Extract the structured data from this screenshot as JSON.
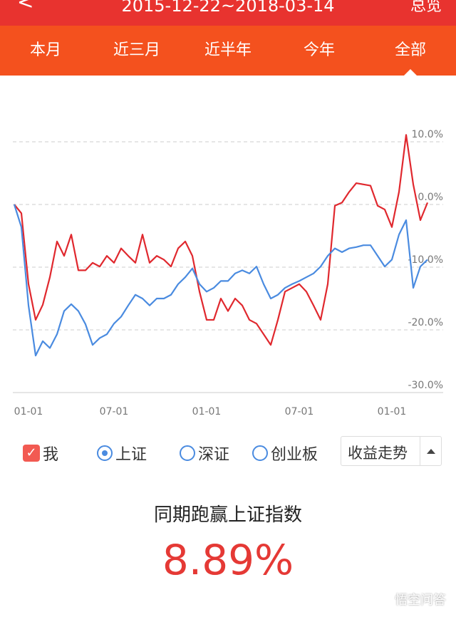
{
  "header": {
    "back": "<",
    "range": "2015-12-22~2018-03-14",
    "right": "总览"
  },
  "tabs": [
    "本月",
    "近三月",
    "近半年",
    "今年",
    "全部"
  ],
  "chart_data": {
    "type": "line",
    "categories": [
      null,
      null,
      "01-01",
      null,
      null,
      null,
      null,
      null,
      null,
      null,
      null,
      null,
      null,
      null,
      "07-01",
      null,
      null,
      null,
      null,
      null,
      null,
      null,
      null,
      null,
      null,
      null,
      null,
      "01-01",
      null,
      null,
      null,
      null,
      null,
      null,
      null,
      null,
      null,
      null,
      null,
      null,
      "07-01",
      null,
      null,
      null,
      null,
      null,
      null,
      null,
      null,
      null,
      null,
      null,
      null,
      "01-01",
      null,
      null,
      null,
      null,
      null
    ],
    "series": [
      {
        "name": "我",
        "color": "#e0282e",
        "values": [
          0,
          -1.4,
          -12.7,
          -18.4,
          -16,
          -11.6,
          -5.9,
          -8.2,
          -4.8,
          -10.5,
          -10.5,
          -9.3,
          -9.9,
          -8.2,
          -9.3,
          -7,
          -8.2,
          -9.3,
          -4.8,
          -9.3,
          -8.2,
          -8.8,
          -9.9,
          -7,
          -5.9,
          -8.2,
          -13.9,
          -18.4,
          -18.4,
          -15,
          -17,
          -15,
          -16.1,
          -18.4,
          -19,
          -20.7,
          -22.4,
          -18.4,
          -13.9,
          -13.3,
          -12.7,
          -13.9,
          -16.1,
          -18.4,
          -12.7,
          -0.2,
          0.3,
          2,
          3.4,
          3.2,
          3,
          -0.2,
          -0.8,
          -3.6,
          2,
          11.1,
          3.2,
          -2.5,
          0.3
        ]
      },
      {
        "name": "上证",
        "color": "#4a8be0",
        "values": [
          0,
          -3.6,
          -16.1,
          -24.1,
          -21.8,
          -22.9,
          -20.7,
          -17,
          -15.9,
          -17,
          -19.1,
          -22.4,
          -21.3,
          -20.7,
          -19,
          -17.9,
          -16.1,
          -14.4,
          -15,
          -16.1,
          -15,
          -15,
          -14.4,
          -12.7,
          -11.6,
          -10.2,
          -12.7,
          -13.9,
          -13.3,
          -12.2,
          -12.2,
          -11,
          -10.5,
          -11,
          -9.9,
          -12.7,
          -15,
          -14.4,
          -13.3,
          -12.7,
          -12.2,
          -11.6,
          -11,
          -9.9,
          -8.2,
          -7,
          -7.6,
          -7,
          -6.8,
          -6.5,
          -6.5,
          -8.2,
          -9.9,
          -8.8,
          -4.8,
          -2.5,
          -13.3,
          -9.9,
          -8.8
        ]
      }
    ],
    "ylim": [
      -30,
      12
    ],
    "yticks": [
      {
        "value": 10,
        "label": "10.0%"
      },
      {
        "value": 0,
        "label": "0.0%"
      },
      {
        "value": -10,
        "label": "-10.0%"
      },
      {
        "value": -20,
        "label": "-20.0%"
      },
      {
        "value": -30,
        "label": "-30.0%"
      }
    ],
    "grid": true
  },
  "selector": {
    "options": [
      "深证",
      "创业板"
    ],
    "dropdown": "收益走势"
  },
  "summary": {
    "headline": "同期跑赢上证指数",
    "value": "8.89%"
  },
  "watermark": "悟空问答"
}
